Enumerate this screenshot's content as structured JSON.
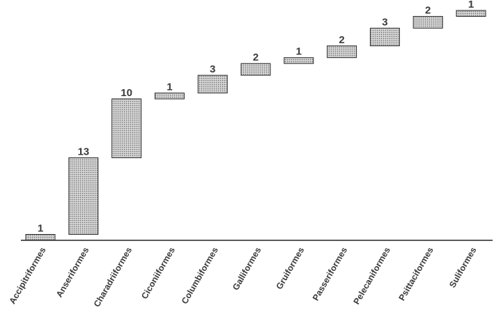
{
  "chart_data": {
    "type": "bar",
    "subtype": "waterfall",
    "title": "",
    "xlabel": "",
    "ylabel": "",
    "categories": [
      "Accipitriformes",
      "Anseriformes",
      "Charadriiformes",
      "Ciconiiformes",
      "Columbiformes",
      "Galliformes",
      "Gruiformes",
      "Passeriformes",
      "Pelecaniformes",
      "Psittaciformes",
      "Suliformes"
    ],
    "values": [
      1,
      13,
      10,
      1,
      3,
      2,
      1,
      2,
      3,
      2,
      1
    ],
    "ylim": [
      0,
      39
    ],
    "grid": false,
    "legend": "none",
    "colors": {
      "bar_fill": "#d4d4d4",
      "bar_dots": "#6a6a6a",
      "bar_border": "#2a2a2a",
      "axis": "#222222",
      "text": "#3a3a3a"
    }
  }
}
